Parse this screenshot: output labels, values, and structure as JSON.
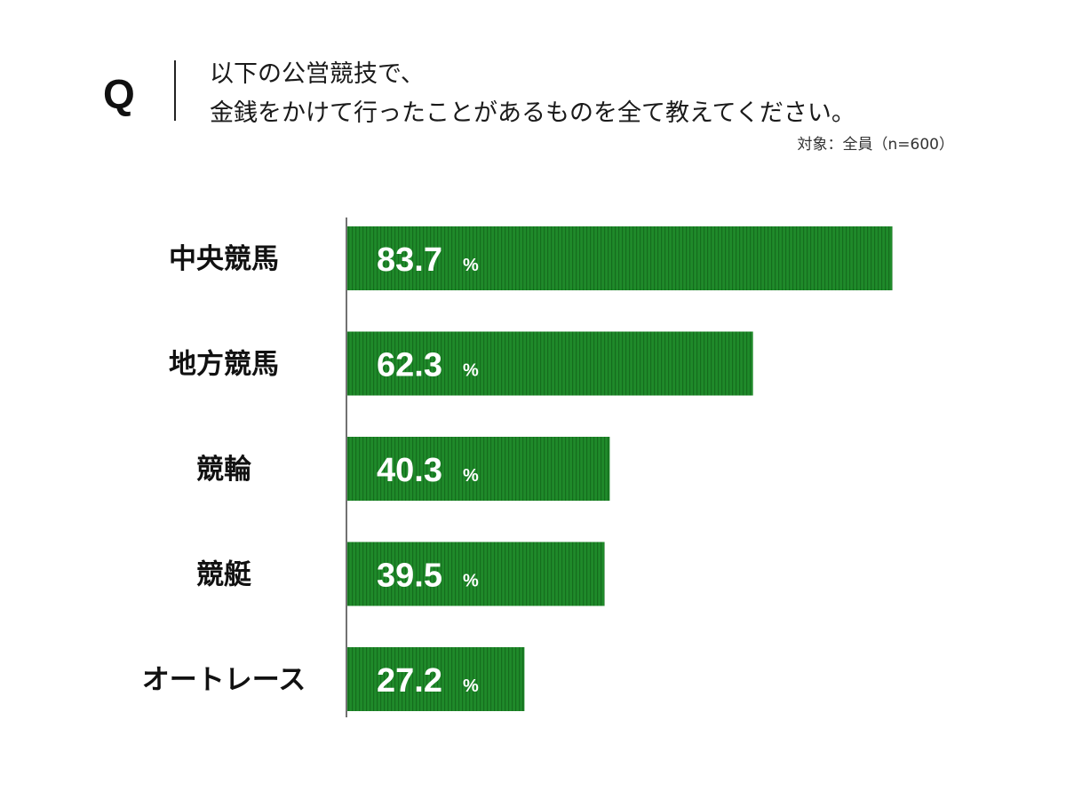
{
  "header": {
    "q_mark": "Q",
    "question_line1": "以下の公営競技で、",
    "question_line2": "金銭をかけて行ったことがあるものを全て教えてください。",
    "target_note": "対象：全員（n=600）"
  },
  "colors": {
    "bar_fill": "#1f8a2a",
    "bar_stripe": "#156d1d",
    "axis": "#444444"
  },
  "chart_data": {
    "type": "bar",
    "orientation": "horizontal",
    "title": "",
    "xlabel": "",
    "ylabel": "",
    "unit": "%",
    "xlim": [
      0,
      100
    ],
    "grid": false,
    "legend": "none",
    "categories": [
      "中央競馬",
      "地方競馬",
      "競輪",
      "競艇",
      "オートレース"
    ],
    "values": [
      83.7,
      62.3,
      40.3,
      39.5,
      27.2
    ],
    "value_labels": [
      "83.7",
      "62.3",
      "40.3",
      "39.5",
      "27.2"
    ]
  }
}
